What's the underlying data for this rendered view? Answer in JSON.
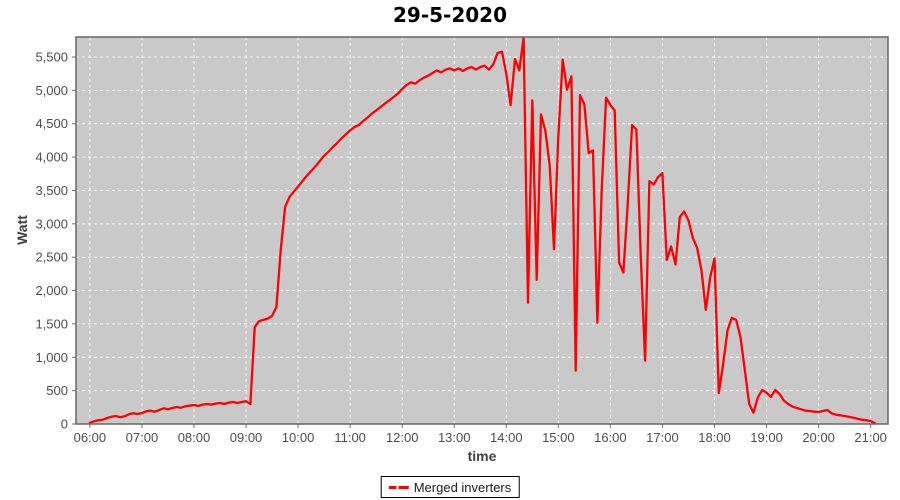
{
  "chart_data": {
    "type": "line",
    "title": "29-5-2020",
    "xlabel": "time",
    "ylabel": "Watt",
    "legend": [
      "Merged inverters"
    ],
    "legend_position": "bottom-center",
    "grid": true,
    "grid_style": "white-dashed",
    "x_ticks": [
      "06:00",
      "07:00",
      "08:00",
      "09:00",
      "10:00",
      "11:00",
      "12:00",
      "13:00",
      "14:00",
      "15:00",
      "16:00",
      "17:00",
      "18:00",
      "19:00",
      "20:00",
      "21:00"
    ],
    "y_ticks": [
      0,
      500,
      1000,
      1500,
      2000,
      2500,
      3000,
      3500,
      4000,
      4500,
      5000,
      5500
    ],
    "y_tick_labels": [
      "0",
      "500",
      "1,000",
      "1,500",
      "2,000",
      "2,500",
      "3,000",
      "3,500",
      "4,000",
      "4,500",
      "5,000",
      "5,500"
    ],
    "xlim_minutes": [
      344,
      1280
    ],
    "ylim": [
      0,
      5800
    ],
    "colors": {
      "series": "#ff0000",
      "plot_background": "#c9c9c9",
      "gridline": "#ffffff",
      "axis_text": "#4d4d4d",
      "tick_mark": "#6e6e6e",
      "plot_border": "#666666",
      "title_text": "#000000",
      "legend_border": "#000000"
    },
    "series": [
      {
        "name": "Merged inverters",
        "color": "#ff0000",
        "points": [
          [
            "06:00",
            20
          ],
          [
            "06:05",
            40
          ],
          [
            "06:10",
            55
          ],
          [
            "06:15",
            65
          ],
          [
            "06:20",
            90
          ],
          [
            "06:25",
            110
          ],
          [
            "06:30",
            120
          ],
          [
            "06:35",
            100
          ],
          [
            "06:40",
            115
          ],
          [
            "06:45",
            145
          ],
          [
            "06:50",
            160
          ],
          [
            "06:55",
            150
          ],
          [
            "07:00",
            165
          ],
          [
            "07:05",
            190
          ],
          [
            "07:10",
            200
          ],
          [
            "07:15",
            185
          ],
          [
            "07:20",
            210
          ],
          [
            "07:25",
            235
          ],
          [
            "07:30",
            220
          ],
          [
            "07:35",
            240
          ],
          [
            "07:40",
            255
          ],
          [
            "07:45",
            245
          ],
          [
            "07:50",
            265
          ],
          [
            "07:55",
            275
          ],
          [
            "08:00",
            285
          ],
          [
            "08:05",
            270
          ],
          [
            "08:10",
            290
          ],
          [
            "08:15",
            300
          ],
          [
            "08:20",
            290
          ],
          [
            "08:25",
            305
          ],
          [
            "08:30",
            315
          ],
          [
            "08:35",
            300
          ],
          [
            "08:40",
            320
          ],
          [
            "08:45",
            330
          ],
          [
            "08:50",
            315
          ],
          [
            "08:55",
            330
          ],
          [
            "09:00",
            340
          ],
          [
            "09:05",
            300
          ],
          [
            "09:10",
            1450
          ],
          [
            "09:15",
            1540
          ],
          [
            "09:20",
            1560
          ],
          [
            "09:25",
            1580
          ],
          [
            "09:30",
            1620
          ],
          [
            "09:35",
            1750
          ],
          [
            "09:40",
            2600
          ],
          [
            "09:45",
            3250
          ],
          [
            "09:50",
            3400
          ],
          [
            "09:55",
            3480
          ],
          [
            "10:00",
            3560
          ],
          [
            "10:05",
            3640
          ],
          [
            "10:10",
            3720
          ],
          [
            "10:15",
            3790
          ],
          [
            "10:20",
            3860
          ],
          [
            "10:25",
            3940
          ],
          [
            "10:30",
            4020
          ],
          [
            "10:35",
            4080
          ],
          [
            "10:40",
            4150
          ],
          [
            "10:45",
            4210
          ],
          [
            "10:50",
            4280
          ],
          [
            "10:55",
            4340
          ],
          [
            "11:00",
            4400
          ],
          [
            "11:05",
            4450
          ],
          [
            "11:10",
            4480
          ],
          [
            "11:15",
            4540
          ],
          [
            "11:20",
            4590
          ],
          [
            "11:25",
            4650
          ],
          [
            "11:30",
            4700
          ],
          [
            "11:35",
            4750
          ],
          [
            "11:40",
            4800
          ],
          [
            "11:45",
            4850
          ],
          [
            "11:50",
            4900
          ],
          [
            "11:55",
            4950
          ],
          [
            "12:00",
            5020
          ],
          [
            "12:05",
            5080
          ],
          [
            "12:10",
            5120
          ],
          [
            "12:15",
            5100
          ],
          [
            "12:20",
            5150
          ],
          [
            "12:25",
            5190
          ],
          [
            "12:30",
            5220
          ],
          [
            "12:35",
            5260
          ],
          [
            "12:40",
            5300
          ],
          [
            "12:45",
            5270
          ],
          [
            "12:50",
            5310
          ],
          [
            "12:55",
            5330
          ],
          [
            "13:00",
            5300
          ],
          [
            "13:05",
            5330
          ],
          [
            "13:10",
            5290
          ],
          [
            "13:15",
            5330
          ],
          [
            "13:20",
            5350
          ],
          [
            "13:25",
            5310
          ],
          [
            "13:30",
            5350
          ],
          [
            "13:35",
            5370
          ],
          [
            "13:40",
            5310
          ],
          [
            "13:45",
            5390
          ],
          [
            "13:50",
            5560
          ],
          [
            "13:55",
            5580
          ],
          [
            "14:00",
            5250
          ],
          [
            "14:05",
            4780
          ],
          [
            "14:10",
            5470
          ],
          [
            "14:15",
            5300
          ],
          [
            "14:20",
            5790
          ],
          [
            "14:25",
            1820
          ],
          [
            "14:30",
            4850
          ],
          [
            "14:35",
            2160
          ],
          [
            "14:40",
            4640
          ],
          [
            "14:45",
            4400
          ],
          [
            "14:50",
            3880
          ],
          [
            "14:55",
            2620
          ],
          [
            "15:00",
            4300
          ],
          [
            "15:05",
            5460
          ],
          [
            "15:10",
            5010
          ],
          [
            "15:15",
            5210
          ],
          [
            "15:20",
            800
          ],
          [
            "15:25",
            4930
          ],
          [
            "15:30",
            4790
          ],
          [
            "15:35",
            4060
          ],
          [
            "15:40",
            4100
          ],
          [
            "15:45",
            1520
          ],
          [
            "15:50",
            3500
          ],
          [
            "15:55",
            4890
          ],
          [
            "16:00",
            4780
          ],
          [
            "16:05",
            4700
          ],
          [
            "16:10",
            2420
          ],
          [
            "16:15",
            2270
          ],
          [
            "16:20",
            3300
          ],
          [
            "16:25",
            4480
          ],
          [
            "16:30",
            4410
          ],
          [
            "16:35",
            2500
          ],
          [
            "16:40",
            950
          ],
          [
            "16:45",
            3640
          ],
          [
            "16:50",
            3590
          ],
          [
            "16:55",
            3700
          ],
          [
            "17:00",
            3760
          ],
          [
            "17:05",
            2460
          ],
          [
            "17:10",
            2660
          ],
          [
            "17:15",
            2390
          ],
          [
            "17:20",
            3100
          ],
          [
            "17:25",
            3185
          ],
          [
            "17:30",
            3050
          ],
          [
            "17:35",
            2790
          ],
          [
            "17:40",
            2640
          ],
          [
            "17:45",
            2300
          ],
          [
            "17:50",
            1710
          ],
          [
            "17:55",
            2200
          ],
          [
            "18:00",
            2480
          ],
          [
            "18:05",
            465
          ],
          [
            "18:10",
            900
          ],
          [
            "18:15",
            1400
          ],
          [
            "18:20",
            1590
          ],
          [
            "18:25",
            1560
          ],
          [
            "18:30",
            1300
          ],
          [
            "18:35",
            800
          ],
          [
            "18:40",
            300
          ],
          [
            "18:45",
            170
          ],
          [
            "18:50",
            400
          ],
          [
            "18:55",
            510
          ],
          [
            "19:00",
            470
          ],
          [
            "19:05",
            405
          ],
          [
            "19:10",
            510
          ],
          [
            "19:15",
            450
          ],
          [
            "19:20",
            350
          ],
          [
            "19:25",
            300
          ],
          [
            "19:30",
            260
          ],
          [
            "19:35",
            240
          ],
          [
            "19:40",
            220
          ],
          [
            "19:45",
            200
          ],
          [
            "19:50",
            195
          ],
          [
            "19:55",
            185
          ],
          [
            "20:00",
            180
          ],
          [
            "20:05",
            195
          ],
          [
            "20:10",
            210
          ],
          [
            "20:15",
            160
          ],
          [
            "20:20",
            140
          ],
          [
            "20:25",
            130
          ],
          [
            "20:30",
            120
          ],
          [
            "20:35",
            110
          ],
          [
            "20:40",
            95
          ],
          [
            "20:45",
            80
          ],
          [
            "20:50",
            65
          ],
          [
            "20:55",
            55
          ],
          [
            "21:00",
            45
          ],
          [
            "21:05",
            10
          ]
        ]
      }
    ]
  }
}
